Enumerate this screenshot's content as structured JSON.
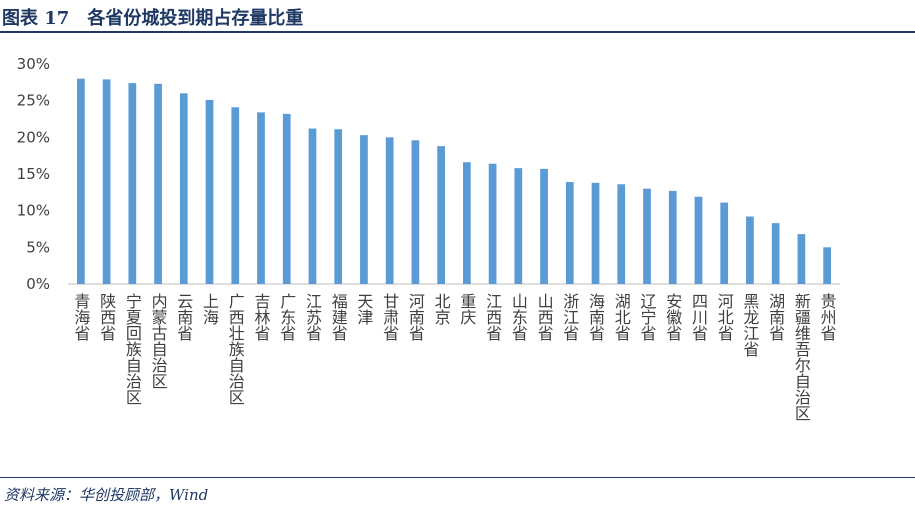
{
  "figure": {
    "title": "图表 17　各省份城投到期占存量比重",
    "source": "资料来源：华创投顾部，Wind"
  },
  "colors": {
    "bar": "#5b9bd5",
    "axis": "#bfbfbf",
    "text": "#404040",
    "accent": "#1f3864"
  },
  "chart_data": {
    "type": "bar",
    "categories": [
      "青海省",
      "陕西省",
      "宁夏回族自治区",
      "内蒙古自治区",
      "云南省",
      "上海",
      "广西壮族自治区",
      "吉林省",
      "广东省",
      "江苏省",
      "福建省",
      "天津",
      "甘肃省",
      "河南省",
      "北京",
      "重庆",
      "江西省",
      "山东省",
      "山西省",
      "浙江省",
      "海南省",
      "湖北省",
      "辽宁省",
      "安徽省",
      "四川省",
      "河北省",
      "黑龙江省",
      "湖南省",
      "新疆维吾尔自治区",
      "贵州省"
    ],
    "values": [
      28.0,
      27.9,
      27.4,
      27.3,
      26.0,
      25.1,
      24.1,
      23.4,
      23.2,
      21.2,
      21.1,
      20.3,
      20.0,
      19.6,
      18.8,
      16.6,
      16.4,
      15.8,
      15.7,
      13.9,
      13.8,
      13.6,
      13.0,
      12.7,
      11.9,
      11.1,
      9.2,
      8.3,
      6.8,
      5.0
    ],
    "yticks": [
      "0%",
      "5%",
      "10%",
      "15%",
      "20%",
      "25%",
      "30%"
    ],
    "ylim": [
      0,
      30
    ],
    "grid": false,
    "legend": "none"
  }
}
